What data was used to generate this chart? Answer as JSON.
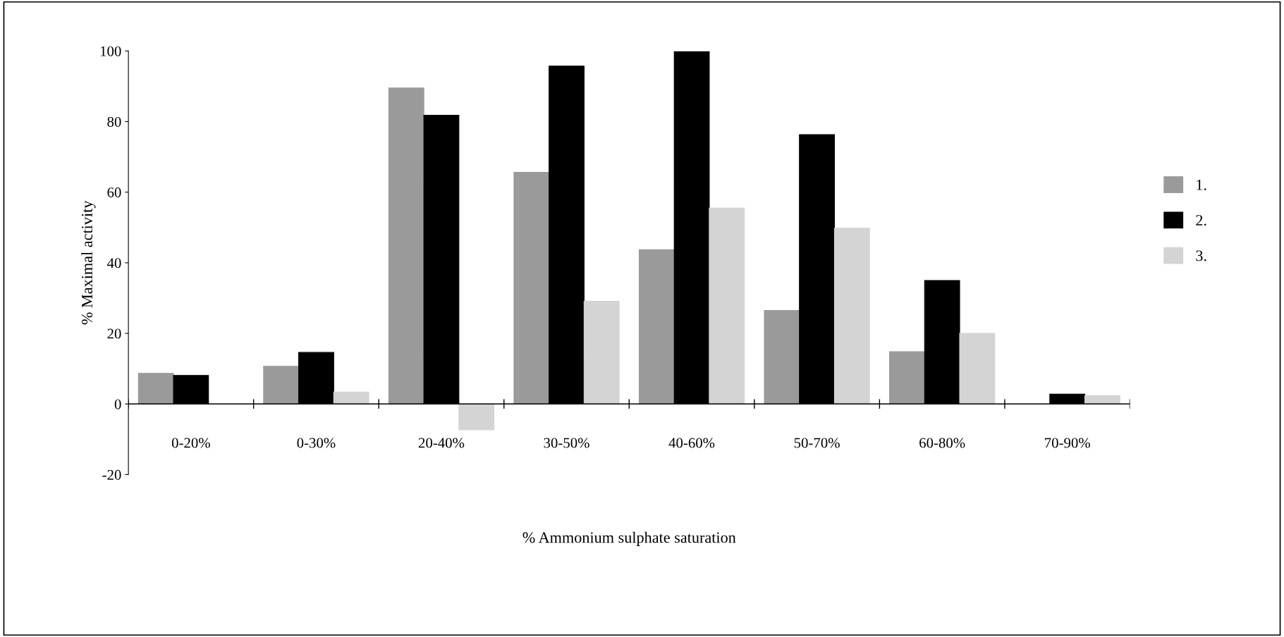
{
  "chart_data": {
    "type": "bar",
    "xlabel": "% Ammonium sulphate saturation",
    "ylabel": "% Maximal activity",
    "categories": [
      "0-20%",
      "0-30%",
      "20-40%",
      "30-50%",
      "40-60%",
      "50-70%",
      "60-80%",
      "70-90%"
    ],
    "series": [
      {
        "name": "1.",
        "color": "#9a9a9a",
        "values": [
          8.7,
          10.7,
          89.5,
          65.6,
          43.7,
          26.5,
          14.8,
          null
        ]
      },
      {
        "name": "2.",
        "color": "#000000",
        "values": [
          8.1,
          14.6,
          81.8,
          95.7,
          99.8,
          76.3,
          35.0,
          2.8
        ]
      },
      {
        "name": "3.",
        "color": "#d4d4d4",
        "values": [
          null,
          3.4,
          -7.3,
          29.1,
          55.5,
          49.8,
          20.0,
          2.4
        ]
      }
    ],
    "ylim": [
      -20,
      100
    ],
    "yticks": [
      -20,
      0,
      20,
      40,
      60,
      80,
      100
    ],
    "grid": false,
    "legend": "right"
  }
}
